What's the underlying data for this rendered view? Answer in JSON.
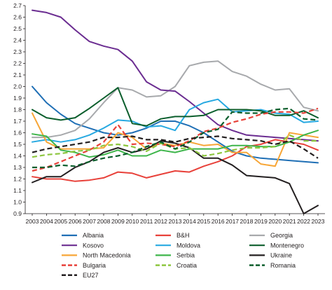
{
  "chart_data": {
    "type": "line",
    "x": [
      2003,
      2004,
      2005,
      2006,
      2007,
      2008,
      2009,
      2010,
      2011,
      2012,
      2013,
      2014,
      2015,
      2016,
      2017,
      2018,
      2019,
      2020,
      2021,
      2022,
      2023
    ],
    "x_tick_labels": [
      "2003",
      "2004",
      "2005",
      "2006",
      "2007",
      "2008",
      "2009",
      "2010",
      "2011",
      "2012",
      "2013",
      "2014",
      "2015",
      "2016",
      "2017",
      "2018",
      "2019",
      "2020",
      "2021",
      "2022",
      "2023"
    ],
    "ylim": [
      0.9,
      2.7
    ],
    "y_ticks": [
      0.9,
      1.0,
      1.1,
      1.2,
      1.3,
      1.4,
      1.5,
      1.6,
      1.7,
      1.8,
      1.9,
      2.0,
      2.1,
      2.2,
      2.3,
      2.4,
      2.5,
      2.6,
      2.7
    ],
    "y_tick_labels": [
      "0.9",
      "1.0",
      "1.1",
      "1.2",
      "1.3",
      "1.4",
      "1.5",
      "1.6",
      "1.7",
      "1.8",
      "1.9",
      "2.0",
      "2.1",
      "2.2",
      "2.3",
      "2.4",
      "2.5",
      "2.6",
      "2.7"
    ],
    "grid": false,
    "legend_position": "bottom",
    "series": [
      {
        "name": "Albania",
        "color": "#1f6fb5",
        "dash": "solid",
        "values": [
          2.0,
          1.86,
          1.76,
          1.68,
          1.64,
          1.6,
          1.58,
          1.6,
          1.64,
          1.7,
          1.7,
          1.66,
          1.6,
          1.52,
          1.44,
          1.4,
          1.38,
          1.37,
          1.36,
          1.35,
          1.34
        ]
      },
      {
        "name": "B&H",
        "color": "#e8413a",
        "dash": "solid",
        "values": [
          1.22,
          1.2,
          1.2,
          1.18,
          1.19,
          1.21,
          1.26,
          1.25,
          1.21,
          1.24,
          1.27,
          1.26,
          1.31,
          1.35,
          1.4,
          1.48,
          1.5,
          1.54,
          1.52,
          1.5,
          1.45
        ]
      },
      {
        "name": "Georgia",
        "color": "#a7a9ac",
        "dash": "solid",
        "values": [
          1.56,
          1.56,
          1.58,
          1.62,
          1.72,
          1.86,
          1.99,
          1.97,
          1.91,
          1.92,
          2.0,
          2.18,
          2.21,
          2.22,
          2.13,
          2.09,
          2.02,
          1.97,
          1.98,
          1.82,
          1.79
        ]
      },
      {
        "name": "Kosovo",
        "color": "#6b2d91",
        "dash": "solid",
        "values": [
          2.66,
          2.64,
          2.6,
          2.49,
          2.39,
          2.35,
          2.32,
          2.22,
          2.04,
          1.97,
          1.96,
          1.87,
          1.77,
          1.67,
          1.62,
          1.58,
          1.57,
          1.56,
          1.55,
          1.54,
          1.53
        ]
      },
      {
        "name": "Moldova",
        "color": "#27a9e1",
        "dash": "solid",
        "values": [
          1.52,
          1.54,
          1.52,
          1.54,
          1.58,
          1.64,
          1.71,
          1.7,
          1.65,
          1.66,
          1.62,
          1.8,
          1.86,
          1.89,
          1.78,
          1.79,
          1.8,
          1.77,
          1.76,
          1.69,
          1.7
        ]
      },
      {
        "name": "Montenegro",
        "color": "#0b5e2c",
        "dash": "solid",
        "values": [
          1.8,
          1.73,
          1.71,
          1.73,
          1.81,
          1.9,
          1.99,
          1.68,
          1.66,
          1.72,
          1.74,
          1.74,
          1.75,
          1.8,
          1.8,
          1.8,
          1.79,
          1.75,
          1.75,
          1.79,
          1.73
        ]
      },
      {
        "name": "North Macedonia",
        "color": "#f7a637",
        "dash": "solid",
        "values": [
          1.77,
          1.52,
          1.46,
          1.46,
          1.46,
          1.47,
          1.6,
          1.56,
          1.46,
          1.51,
          1.49,
          1.52,
          1.49,
          1.5,
          1.43,
          1.43,
          1.33,
          1.31,
          1.6,
          1.58,
          1.56
        ]
      },
      {
        "name": "Serbia",
        "color": "#3db54a",
        "dash": "solid",
        "values": [
          1.59,
          1.57,
          1.45,
          1.43,
          1.39,
          1.41,
          1.45,
          1.4,
          1.4,
          1.45,
          1.43,
          1.46,
          1.46,
          1.46,
          1.49,
          1.49,
          1.48,
          1.48,
          1.52,
          1.58,
          1.62
        ]
      },
      {
        "name": "Ukraine",
        "color": "#231f20",
        "dash": "solid",
        "values": [
          1.17,
          1.22,
          1.22,
          1.3,
          1.35,
          1.43,
          1.47,
          1.43,
          1.46,
          1.53,
          1.51,
          1.47,
          1.38,
          1.38,
          1.32,
          1.23,
          1.22,
          1.21,
          1.16,
          0.9,
          0.97
        ]
      },
      {
        "name": "Bulgaria",
        "color": "#e8413a",
        "dash": "dashed",
        "values": [
          1.27,
          1.3,
          1.35,
          1.4,
          1.45,
          1.52,
          1.67,
          1.5,
          1.51,
          1.5,
          1.48,
          1.53,
          1.61,
          1.64,
          1.69,
          1.72,
          1.76,
          1.78,
          1.78,
          1.77,
          1.81
        ]
      },
      {
        "name": "Croatia",
        "color": "#8dc63f",
        "dash": "dashed",
        "values": [
          1.39,
          1.41,
          1.42,
          1.44,
          1.45,
          1.49,
          1.5,
          1.48,
          1.44,
          1.51,
          1.46,
          1.47,
          1.4,
          1.42,
          1.45,
          1.47,
          1.47,
          1.48,
          1.58,
          1.53,
          1.53
        ]
      },
      {
        "name": "Romania",
        "color": "#0b5e2c",
        "dash": "dashed",
        "values": [
          1.3,
          1.3,
          1.32,
          1.31,
          1.35,
          1.38,
          1.4,
          1.43,
          1.48,
          1.52,
          1.46,
          1.52,
          1.6,
          1.63,
          1.78,
          1.77,
          1.77,
          1.8,
          1.81,
          1.72,
          1.71
        ]
      },
      {
        "name": "EU27",
        "color": "#231f20",
        "dash": "dashed",
        "values": [
          1.43,
          1.46,
          1.48,
          1.5,
          1.52,
          1.56,
          1.56,
          1.57,
          1.54,
          1.54,
          1.52,
          1.55,
          1.56,
          1.57,
          1.55,
          1.54,
          1.53,
          1.5,
          1.53,
          1.46,
          1.38
        ]
      }
    ]
  }
}
